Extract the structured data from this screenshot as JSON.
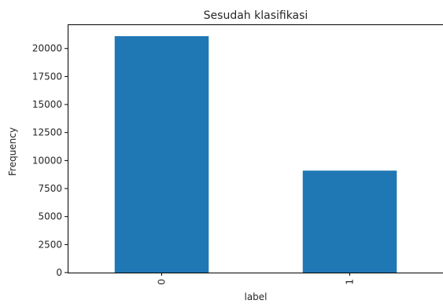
{
  "chart_data": {
    "type": "bar",
    "title": "Sesudah klasifikasi",
    "xlabel": "label",
    "ylabel": "Frequency",
    "categories": [
      "0",
      "1"
    ],
    "values": [
      21100,
      9100
    ],
    "ylim": [
      0,
      22155
    ],
    "yticks": [
      0,
      2500,
      5000,
      7500,
      10000,
      12500,
      15000,
      17500,
      20000
    ],
    "ytick_labels": [
      "0",
      "2500",
      "5000",
      "7500",
      "10000",
      "12500",
      "15000",
      "17500",
      "20000"
    ],
    "bar_color": "#1f77b4",
    "grid": false,
    "legend": "none",
    "xtick_rotation": "vertical"
  }
}
